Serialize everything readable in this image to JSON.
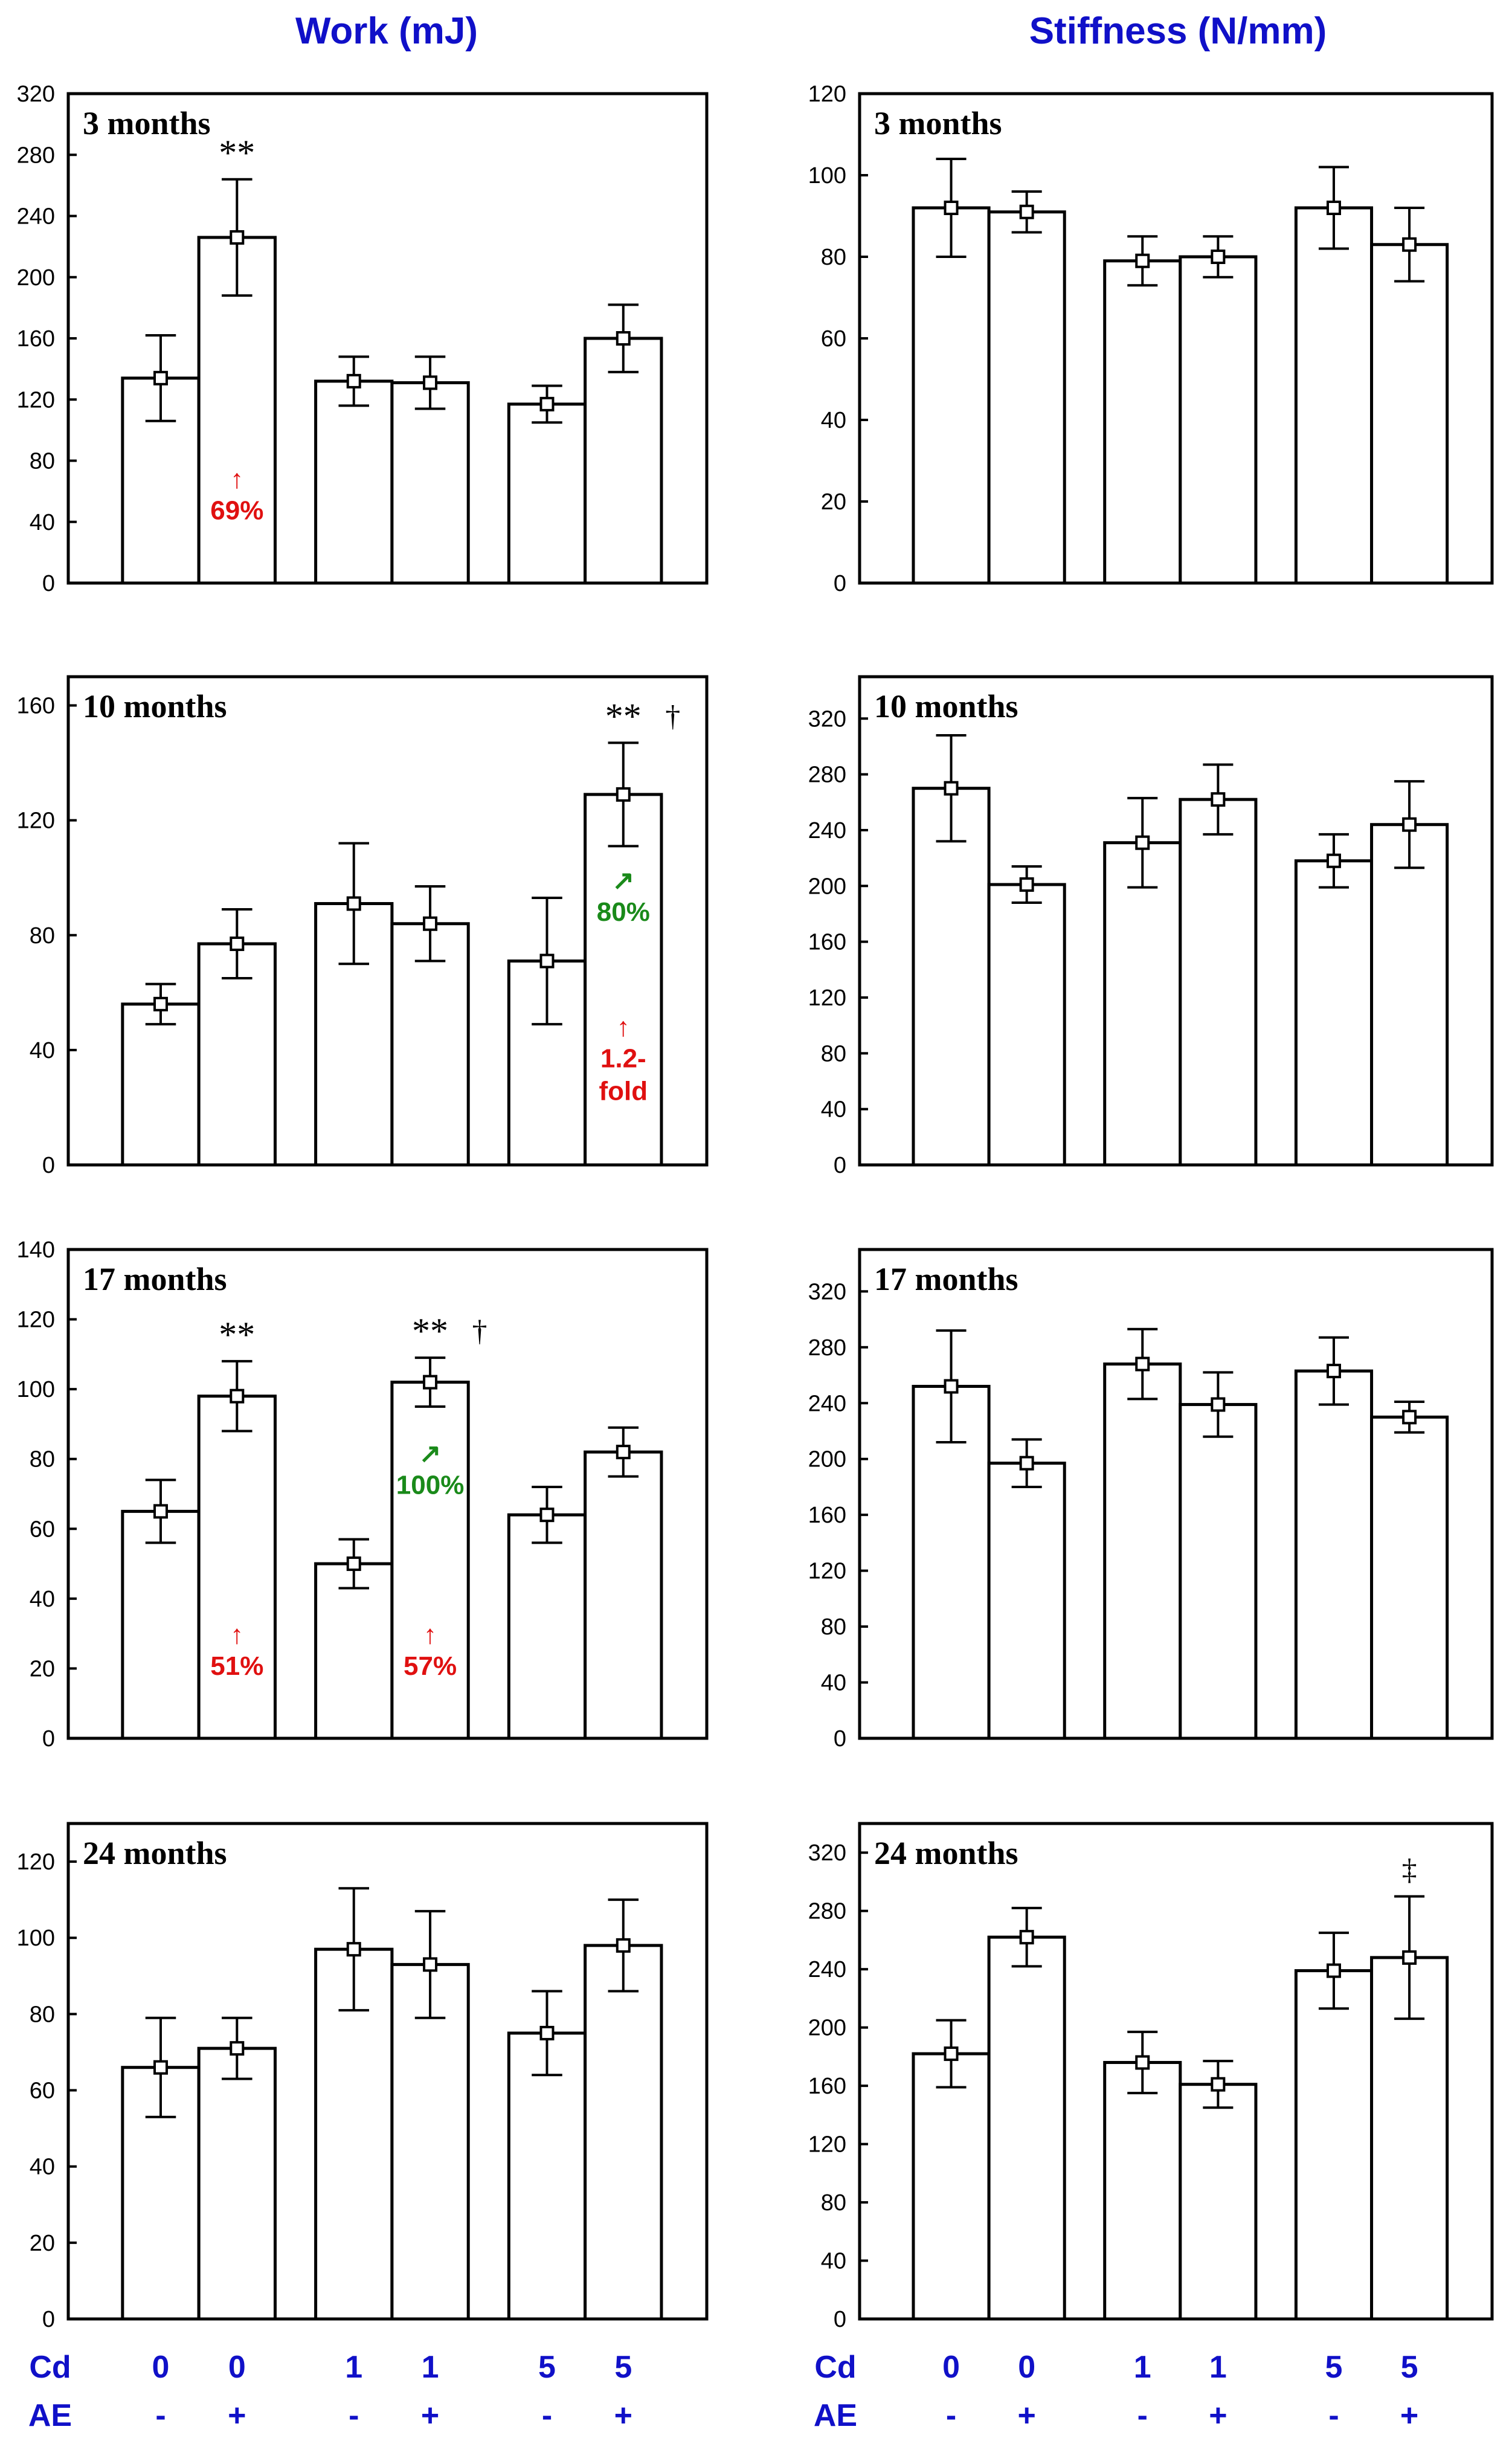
{
  "columns": {
    "left_title": "Work (mJ)",
    "right_title": "Stiffness (N/mm)"
  },
  "x_categories": {
    "row1_label": "Cd",
    "row2_label": "AE",
    "cd": [
      "0",
      "0",
      "1",
      "1",
      "5",
      "5"
    ],
    "ae": [
      "-",
      "+",
      "-",
      "+",
      "-",
      "+"
    ]
  },
  "colors": {
    "title": "#1010c8",
    "increase_red": "#e01010",
    "increase_green": "#1a8a1a"
  },
  "chart_data": [
    {
      "type": "bar",
      "column": "left",
      "row": 0,
      "title": "3 months",
      "ylabel": "Work (mJ)",
      "categories": [
        "Cd0 AE-",
        "Cd0 AE+",
        "Cd1 AE-",
        "Cd1 AE+",
        "Cd5 AE-",
        "Cd5 AE+"
      ],
      "values": [
        134,
        226,
        132,
        131,
        117,
        160
      ],
      "errors": [
        28,
        38,
        16,
        17,
        12,
        22
      ],
      "ylim": [
        0,
        320
      ],
      "yticks": [
        "0",
        "40",
        "80",
        "120",
        "160",
        "200",
        "240",
        "280",
        "320"
      ],
      "significance": [
        {
          "bar": 1,
          "text": "**"
        }
      ],
      "annotations": [
        {
          "bar": 1,
          "arrow": "↑",
          "text": "69%",
          "color": "red",
          "level": 0.13
        }
      ]
    },
    {
      "type": "bar",
      "column": "right",
      "row": 0,
      "title": "3 months",
      "ylabel": "Stiffness (N/mm)",
      "categories": [
        "Cd0 AE-",
        "Cd0 AE+",
        "Cd1 AE-",
        "Cd1 AE+",
        "Cd5 AE-",
        "Cd5 AE+"
      ],
      "values": [
        92,
        91,
        79,
        80,
        92,
        83
      ],
      "errors": [
        12,
        5,
        6,
        5,
        10,
        9
      ],
      "ylim": [
        0,
        120
      ],
      "yticks": [
        "0",
        "20",
        "40",
        "60",
        "80",
        "100",
        "120"
      ],
      "significance": [],
      "annotations": []
    },
    {
      "type": "bar",
      "column": "left",
      "row": 1,
      "title": "10 months",
      "ylabel": "Work (mJ)",
      "categories": [
        "Cd0 AE-",
        "Cd0 AE+",
        "Cd1 AE-",
        "Cd1 AE+",
        "Cd5 AE-",
        "Cd5 AE+"
      ],
      "values": [
        56,
        77,
        91,
        84,
        71,
        129
      ],
      "errors": [
        7,
        12,
        21,
        13,
        22,
        18
      ],
      "ylim": [
        0,
        170
      ],
      "yticks": [
        "0",
        "40",
        "80",
        "120",
        "160"
      ],
      "significance": [
        {
          "bar": 5,
          "text": "**",
          "dagger": "†"
        }
      ],
      "annotations": [
        {
          "bar": 5,
          "arrow": "↗",
          "text": "80%",
          "color": "green",
          "level": 0.5
        },
        {
          "bar": 5,
          "arrow": "↑",
          "text": "1.2-",
          "text2": "fold",
          "color": "red",
          "level": 0.2
        }
      ]
    },
    {
      "type": "bar",
      "column": "right",
      "row": 1,
      "title": "10 months",
      "ylabel": "Stiffness (N/mm)",
      "categories": [
        "Cd0 AE-",
        "Cd0 AE+",
        "Cd1 AE-",
        "Cd1 AE+",
        "Cd5 AE-",
        "Cd5 AE+"
      ],
      "values": [
        270,
        201,
        231,
        262,
        218,
        244
      ],
      "errors": [
        38,
        13,
        32,
        25,
        19,
        31
      ],
      "ylim": [
        0,
        350
      ],
      "yticks": [
        "0",
        "40",
        "80",
        "120",
        "160",
        "200",
        "240",
        "280",
        "320"
      ],
      "significance": [],
      "annotations": []
    },
    {
      "type": "bar",
      "column": "left",
      "row": 2,
      "title": "17 months",
      "ylabel": "Work (mJ)",
      "categories": [
        "Cd0 AE-",
        "Cd0 AE+",
        "Cd1 AE-",
        "Cd1 AE+",
        "Cd5 AE-",
        "Cd5 AE+"
      ],
      "values": [
        65,
        98,
        50,
        102,
        64,
        82
      ],
      "errors": [
        9,
        10,
        7,
        7,
        8,
        7
      ],
      "ylim": [
        0,
        140
      ],
      "yticks": [
        "0",
        "20",
        "40",
        "60",
        "80",
        "100",
        "120",
        "140"
      ],
      "significance": [
        {
          "bar": 1,
          "text": "**"
        },
        {
          "bar": 3,
          "text": "**",
          "dagger": "†"
        }
      ],
      "annotations": [
        {
          "bar": 1,
          "arrow": "↑",
          "text": "51%",
          "color": "red",
          "level": 0.13
        },
        {
          "bar": 3,
          "arrow": "↗",
          "text": "100%",
          "color": "green",
          "level": 0.5
        },
        {
          "bar": 3,
          "arrow": "↑",
          "text": "57%",
          "color": "red",
          "level": 0.13
        }
      ]
    },
    {
      "type": "bar",
      "column": "right",
      "row": 2,
      "title": "17 months",
      "ylabel": "Stiffness (N/mm)",
      "categories": [
        "Cd0 AE-",
        "Cd0 AE+",
        "Cd1 AE-",
        "Cd1 AE+",
        "Cd5 AE-",
        "Cd5 AE+"
      ],
      "values": [
        252,
        197,
        268,
        239,
        263,
        230
      ],
      "errors": [
        40,
        17,
        25,
        23,
        24,
        11
      ],
      "ylim": [
        0,
        350
      ],
      "yticks": [
        "0",
        "40",
        "80",
        "120",
        "160",
        "200",
        "240",
        "280",
        "320"
      ],
      "significance": [],
      "annotations": []
    },
    {
      "type": "bar",
      "column": "left",
      "row": 3,
      "title": "24 months",
      "ylabel": "Work (mJ)",
      "categories": [
        "Cd0 AE-",
        "Cd0 AE+",
        "Cd1 AE-",
        "Cd1 AE+",
        "Cd5 AE-",
        "Cd5 AE+"
      ],
      "values": [
        66,
        71,
        97,
        93,
        75,
        98
      ],
      "errors": [
        13,
        8,
        16,
        14,
        11,
        12
      ],
      "ylim": [
        0,
        130
      ],
      "yticks": [
        "0",
        "20",
        "40",
        "60",
        "80",
        "100",
        "120"
      ],
      "significance": [],
      "annotations": []
    },
    {
      "type": "bar",
      "column": "right",
      "row": 3,
      "title": "24 months",
      "ylabel": "Stiffness (N/mm)",
      "categories": [
        "Cd0 AE-",
        "Cd0 AE+",
        "Cd1 AE-",
        "Cd1 AE+",
        "Cd5 AE-",
        "Cd5 AE+"
      ],
      "values": [
        182,
        262,
        176,
        161,
        239,
        248
      ],
      "errors": [
        23,
        20,
        21,
        16,
        26,
        42
      ],
      "ylim": [
        0,
        340
      ],
      "yticks": [
        "0",
        "40",
        "80",
        "120",
        "160",
        "200",
        "240",
        "280",
        "320"
      ],
      "significance": [
        {
          "bar": 5,
          "text": "",
          "dagger": "‡"
        }
      ],
      "annotations": []
    }
  ]
}
